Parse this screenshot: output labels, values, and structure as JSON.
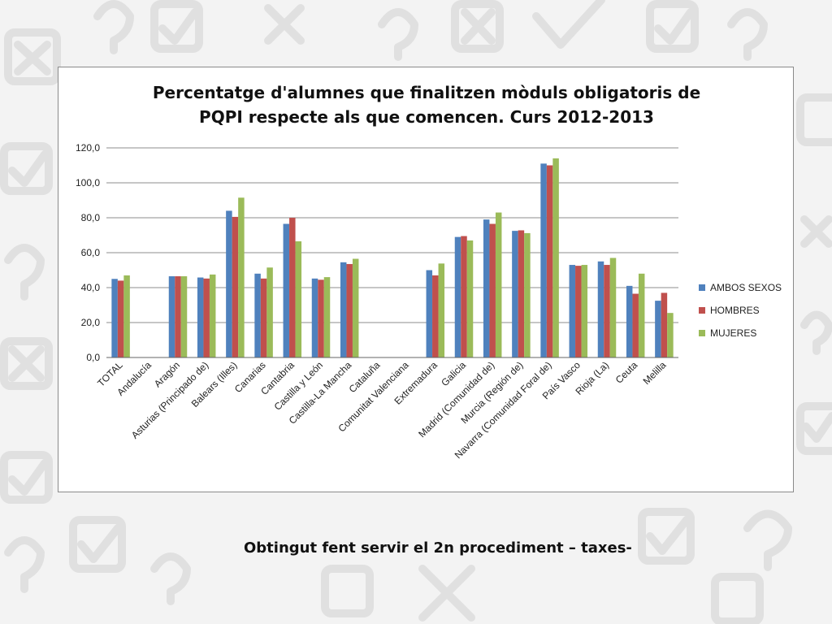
{
  "chart_data": {
    "type": "bar",
    "title_lines": [
      "Percentatge d'alumnes que finalitzen mòduls obligatoris de",
      "PQPI respecte als que comencen. Curs 2012-2013"
    ],
    "xlabel": "",
    "ylabel": "",
    "ylim": [
      0,
      120
    ],
    "yticks": [
      0,
      20,
      40,
      60,
      80,
      100,
      120
    ],
    "ytick_labels": [
      "0,0",
      "20,0",
      "40,0",
      "60,0",
      "80,0",
      "100,0",
      "120,0"
    ],
    "grid": true,
    "legend_position": "right",
    "categories": [
      "TOTAL",
      "Andalucía",
      "Aragón",
      "Asturias (Principado de)",
      "Balears (Illes)",
      "Canarias",
      "Cantabria",
      "Castilla y León",
      "Castilla-La Mancha",
      "Cataluña",
      "Comunitat Valenciana",
      "Extremadura",
      "Galicia",
      "Madrid (Comunidad de)",
      "Murcia (Región de)",
      "Navarra (Comunidad Foral de)",
      "País Vasco",
      "Rioja (La)",
      "Ceuta",
      "Melilla"
    ],
    "series": [
      {
        "name": "AMBOS SEXOS",
        "color": "#4f81bd",
        "values": [
          45,
          null,
          46.5,
          45.8,
          84,
          48,
          76.5,
          45.2,
          54.5,
          null,
          null,
          50,
          69,
          79,
          72.5,
          111,
          53,
          55,
          41,
          32.5
        ]
      },
      {
        "name": "HOMBRES",
        "color": "#c0504d",
        "values": [
          44,
          null,
          46.5,
          45.2,
          80.5,
          45.2,
          80,
          44.5,
          53.5,
          null,
          null,
          47,
          69.5,
          76.5,
          72.8,
          110,
          52.5,
          53,
          36.5,
          37
        ]
      },
      {
        "name": "MUJERES",
        "color": "#9bbb59",
        "values": [
          47,
          null,
          46.5,
          47.5,
          91.5,
          51.5,
          66.5,
          46,
          56.5,
          null,
          null,
          53.8,
          67,
          83,
          71.2,
          114,
          53,
          57,
          48,
          25.5
        ]
      }
    ]
  },
  "footer": {
    "caption": "Obtingut fent servir el 2n procediment – taxes-"
  },
  "colors": {
    "background": "#f3f3f3",
    "decoration": "#e2e2e2",
    "gridline": "#8c8c8c"
  }
}
